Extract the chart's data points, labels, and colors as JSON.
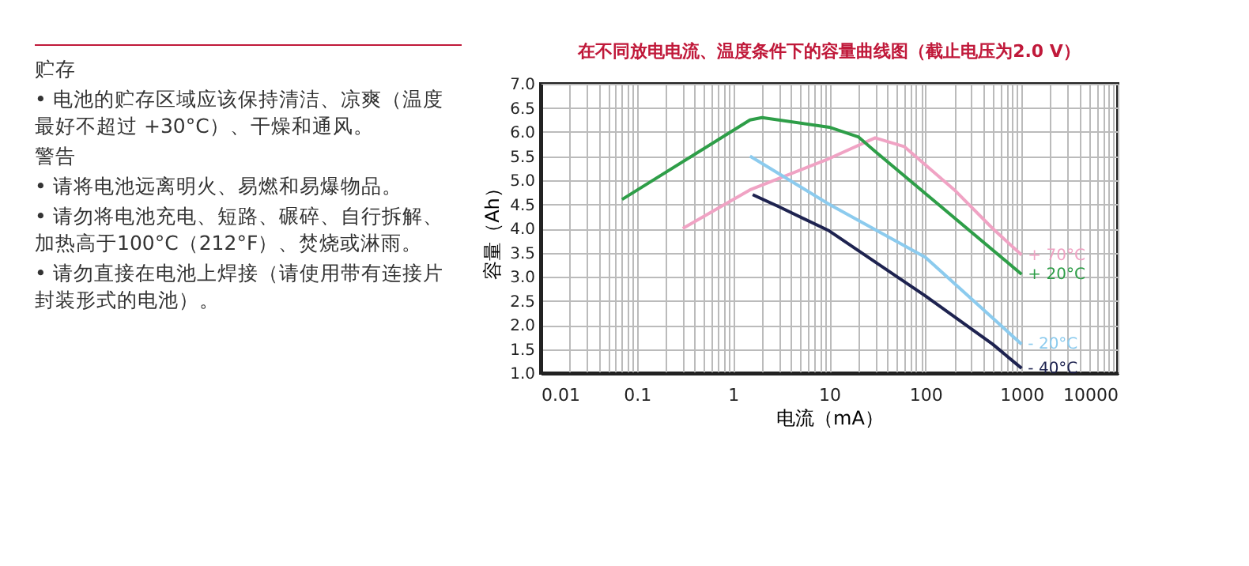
{
  "chart_data": {
    "type": "line",
    "title": "在不同放电电流、温度条件下的容量曲线图（截止电压为2.0 V）",
    "xlabel": "电流（mA）",
    "ylabel": "容量（Ah）",
    "log": "x",
    "grid": true,
    "legend": false,
    "marker": "none",
    "line_style": "solid",
    "xlim": [
      0.01,
      10000
    ],
    "ylim": [
      1.0,
      7.0
    ],
    "xticks": [
      {
        "value": 0.01,
        "label": "0.01"
      },
      {
        "value": 0.02,
        "label": null
      },
      {
        "value": 0.03,
        "label": null
      },
      {
        "value": 0.04,
        "label": null
      },
      {
        "value": 0.05,
        "label": null
      },
      {
        "value": 0.06,
        "label": null
      },
      {
        "value": 0.07,
        "label": null
      },
      {
        "value": 0.08,
        "label": null
      },
      {
        "value": 0.09,
        "label": null
      },
      {
        "value": 0.1,
        "label": "0.1"
      },
      {
        "value": 0.2,
        "label": null
      },
      {
        "value": 0.3,
        "label": null
      },
      {
        "value": 0.4,
        "label": null
      },
      {
        "value": 0.5,
        "label": null
      },
      {
        "value": 0.6,
        "label": null
      },
      {
        "value": 0.7,
        "label": null
      },
      {
        "value": 0.8,
        "label": null
      },
      {
        "value": 0.9,
        "label": null
      },
      {
        "value": 1,
        "label": "1"
      },
      {
        "value": 2,
        "label": null
      },
      {
        "value": 3,
        "label": null
      },
      {
        "value": 4,
        "label": null
      },
      {
        "value": 5,
        "label": null
      },
      {
        "value": 6,
        "label": null
      },
      {
        "value": 7,
        "label": null
      },
      {
        "value": 8,
        "label": null
      },
      {
        "value": 9,
        "label": null
      },
      {
        "value": 10,
        "label": "10"
      },
      {
        "value": 20,
        "label": null
      },
      {
        "value": 30,
        "label": null
      },
      {
        "value": 40,
        "label": null
      },
      {
        "value": 50,
        "label": null
      },
      {
        "value": 60,
        "label": null
      },
      {
        "value": 70,
        "label": null
      },
      {
        "value": 80,
        "label": null
      },
      {
        "value": 90,
        "label": null
      },
      {
        "value": 100,
        "label": "100"
      },
      {
        "value": 200,
        "label": null
      },
      {
        "value": 300,
        "label": null
      },
      {
        "value": 400,
        "label": null
      },
      {
        "value": 500,
        "label": null
      },
      {
        "value": 600,
        "label": null
      },
      {
        "value": 700,
        "label": null
      },
      {
        "value": 800,
        "label": null
      },
      {
        "value": 900,
        "label": null
      },
      {
        "value": 1000,
        "label": "1000"
      },
      {
        "value": 2000,
        "label": null
      },
      {
        "value": 3000,
        "label": null
      },
      {
        "value": 4000,
        "label": null
      },
      {
        "value": 5000,
        "label": null
      },
      {
        "value": 6000,
        "label": null
      },
      {
        "value": 7000,
        "label": null
      },
      {
        "value": 8000,
        "label": null
      },
      {
        "value": 9000,
        "label": null
      },
      {
        "value": 10000,
        "label": "10000"
      }
    ],
    "yticks": [
      {
        "value": 1.0,
        "label": "1.0"
      },
      {
        "value": 1.5,
        "label": "1.5"
      },
      {
        "value": 2.0,
        "label": "2.0"
      },
      {
        "value": 2.5,
        "label": "2.5"
      },
      {
        "value": 3.0,
        "label": "3.0"
      },
      {
        "value": 3.5,
        "label": "3.5"
      },
      {
        "value": 4.0,
        "label": "4.0"
      },
      {
        "value": 4.5,
        "label": "4.5"
      },
      {
        "value": 5.0,
        "label": "5.0"
      },
      {
        "value": 5.5,
        "label": "5.5"
      },
      {
        "value": 6.0,
        "label": "6.0"
      },
      {
        "value": 6.5,
        "label": "6.5"
      },
      {
        "value": 7.0,
        "label": "7.0"
      }
    ],
    "series": [
      {
        "name": "+ 70°C",
        "color": "#f0a3c4",
        "x": [
          0.3,
          1.5,
          10,
          30,
          60,
          200,
          500,
          1000
        ],
        "values": [
          4.0,
          4.8,
          5.45,
          5.88,
          5.7,
          4.8,
          4.0,
          3.45
        ]
      },
      {
        "name": "+ 20°C",
        "color": "#2e9e48",
        "x": [
          0.07,
          1.5,
          2,
          10,
          20,
          30,
          1000
        ],
        "values": [
          4.6,
          6.25,
          6.3,
          6.1,
          5.9,
          5.6,
          3.05
        ]
      },
      {
        "name": "- 20°C",
        "color": "#8ccbee",
        "x": [
          1.5,
          10,
          100,
          1000
        ],
        "values": [
          5.5,
          4.5,
          3.4,
          1.6
        ]
      },
      {
        "name": "- 40°C",
        "color": "#1e2350",
        "x": [
          1.6,
          3,
          10,
          100,
          500,
          1000
        ],
        "values": [
          4.7,
          4.45,
          3.95,
          2.6,
          1.6,
          1.1
        ]
      }
    ],
    "annotations": [
      "贮存",
      "• 电池的贮存区域应该保持清洁、凉爽（温度最好不超过 +30°C）、干燥和通风。",
      "警告",
      "• 请将电池远离明火、易燃和易爆物品。",
      "• 请勿将电池充电、短路、碾碎、自行拆解、加热高于100°C（212°F）、焚烧或淋雨。",
      "• 请勿直接在电池上焊接（请使用带有连接片封装形式的电池）。"
    ]
  }
}
